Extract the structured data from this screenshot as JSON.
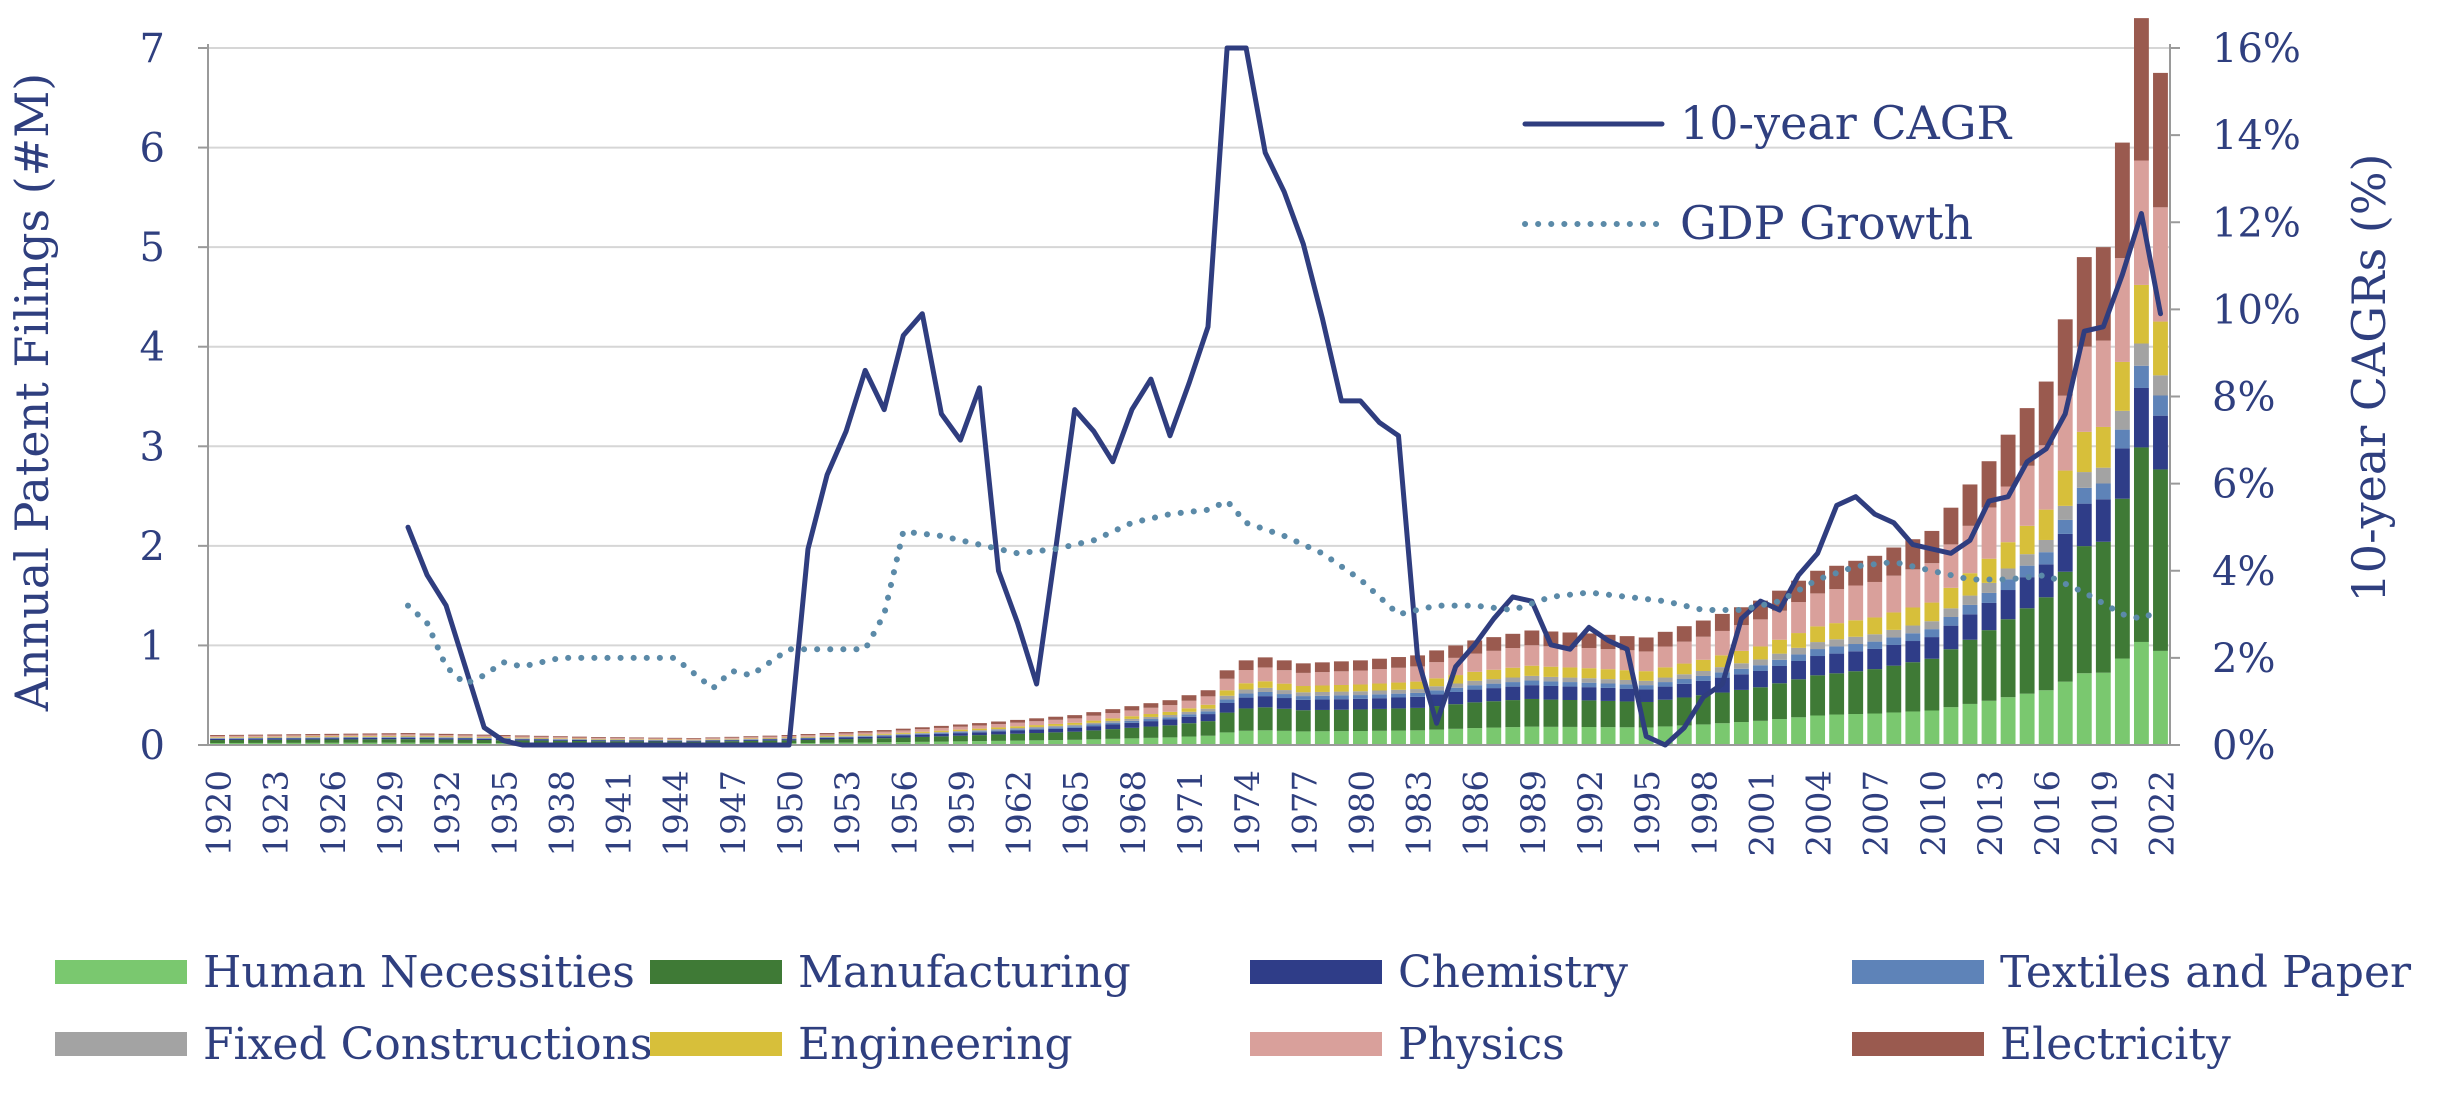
{
  "chart_data": {
    "type": "bar",
    "subtype": "stacked bar + line (dual axis)",
    "ylabel_left": "Annual Patent Filings (#M)",
    "ylabel_right": "10-year CAGRs (%)",
    "ylim_left": [
      0,
      7
    ],
    "ylim_right": [
      0,
      16
    ],
    "left_ticks": [
      "0",
      "1",
      "2",
      "3",
      "4",
      "5",
      "6",
      "7"
    ],
    "right_ticks": [
      "0%",
      "2%",
      "4%",
      "6%",
      "8%",
      "10%",
      "12%",
      "14%",
      "16%"
    ],
    "x_start": 1920,
    "x_end": 2022,
    "x_tick_labels": [
      "1920",
      "1923",
      "1926",
      "1929",
      "1932",
      "1935",
      "1938",
      "1941",
      "1944",
      "1947",
      "1950",
      "1953",
      "1956",
      "1959",
      "1962",
      "1965",
      "1968",
      "1971",
      "1974",
      "1977",
      "1980",
      "1983",
      "1986",
      "1989",
      "1992",
      "1995",
      "1998",
      "2001",
      "2004",
      "2007",
      "2010",
      "2013",
      "2016",
      "2019",
      "2022"
    ],
    "grid": "horizontal",
    "legend_position": "bottom; lines top-right",
    "stack_series": [
      {
        "name": "Human Necessities",
        "color": "#7ac86f"
      },
      {
        "name": "Manufacturing",
        "color": "#3f7a36"
      },
      {
        "name": "Chemistry",
        "color": "#2f3d88"
      },
      {
        "name": "Textiles and Paper",
        "color": "#5e83b8"
      },
      {
        "name": "Fixed Constructions",
        "color": "#a3a3a3"
      },
      {
        "name": "Engineering",
        "color": "#d7bf3a"
      },
      {
        "name": "Physics",
        "color": "#d9a09b"
      },
      {
        "name": "Electricity",
        "color": "#9a5a4f"
      }
    ],
    "totals_key": [
      [
        1920,
        0.1
      ],
      [
        1930,
        0.12
      ],
      [
        1940,
        0.08
      ],
      [
        1945,
        0.07
      ],
      [
        1950,
        0.1
      ],
      [
        1955,
        0.15
      ],
      [
        1960,
        0.22
      ],
      [
        1965,
        0.3
      ],
      [
        1970,
        0.45
      ],
      [
        1972,
        0.55
      ],
      [
        1973,
        0.75
      ],
      [
        1974,
        0.85
      ],
      [
        1975,
        0.88
      ],
      [
        1977,
        0.82
      ],
      [
        1980,
        0.85
      ],
      [
        1983,
        0.9
      ],
      [
        1986,
        1.05
      ],
      [
        1989,
        1.15
      ],
      [
        1992,
        1.12
      ],
      [
        1995,
        1.08
      ],
      [
        1998,
        1.25
      ],
      [
        2001,
        1.45
      ],
      [
        2004,
        1.75
      ],
      [
        2007,
        1.9
      ],
      [
        2010,
        2.15
      ],
      [
        2013,
        2.85
      ],
      [
        2016,
        3.65
      ],
      [
        2018,
        4.9
      ],
      [
        2019,
        5.0
      ],
      [
        2020,
        6.05
      ],
      [
        2021,
        7.3
      ],
      [
        2022,
        6.75
      ]
    ],
    "composition_key": [
      [
        1920,
        [
          0.2,
          0.3,
          0.12,
          0.05,
          0.05,
          0.06,
          0.12,
          0.1
        ]
      ],
      [
        1970,
        [
          0.17,
          0.27,
          0.13,
          0.05,
          0.05,
          0.07,
          0.15,
          0.11
        ]
      ],
      [
        1990,
        [
          0.16,
          0.24,
          0.12,
          0.04,
          0.04,
          0.09,
          0.18,
          0.13
        ]
      ],
      [
        2005,
        [
          0.17,
          0.23,
          0.11,
          0.04,
          0.04,
          0.09,
          0.19,
          0.13
        ]
      ],
      [
        2022,
        [
          0.14,
          0.27,
          0.08,
          0.03,
          0.03,
          0.08,
          0.17,
          0.2
        ]
      ]
    ],
    "lines": [
      {
        "name": "10-year CAGR",
        "style": "solid",
        "color": "#2f3d7f",
        "points": [
          [
            1930,
            5.0
          ],
          [
            1931,
            3.9
          ],
          [
            1932,
            3.2
          ],
          [
            1933,
            1.8
          ],
          [
            1934,
            0.4
          ],
          [
            1935,
            0.1
          ],
          [
            1936,
            0.0
          ],
          [
            1950,
            0.0
          ],
          [
            1951,
            4.5
          ],
          [
            1952,
            6.2
          ],
          [
            1953,
            7.2
          ],
          [
            1954,
            8.6
          ],
          [
            1955,
            7.7
          ],
          [
            1956,
            9.4
          ],
          [
            1957,
            9.9
          ],
          [
            1958,
            7.6
          ],
          [
            1959,
            7.0
          ],
          [
            1960,
            8.2
          ],
          [
            1961,
            4.0
          ],
          [
            1962,
            2.8
          ],
          [
            1963,
            1.4
          ],
          [
            1964,
            4.5
          ],
          [
            1965,
            7.7
          ],
          [
            1966,
            7.2
          ],
          [
            1967,
            6.5
          ],
          [
            1968,
            7.7
          ],
          [
            1969,
            8.4
          ],
          [
            1970,
            7.1
          ],
          [
            1971,
            8.3
          ],
          [
            1972,
            9.6
          ],
          [
            1973,
            16.0
          ],
          [
            1974,
            16.0
          ],
          [
            1975,
            13.6
          ],
          [
            1976,
            12.7
          ],
          [
            1977,
            11.5
          ],
          [
            1978,
            9.8
          ],
          [
            1979,
            7.9
          ],
          [
            1980,
            7.9
          ],
          [
            1981,
            7.4
          ],
          [
            1982,
            7.1
          ],
          [
            1983,
            2.0
          ],
          [
            1984,
            0.5
          ],
          [
            1985,
            1.8
          ],
          [
            1986,
            2.3
          ],
          [
            1987,
            2.9
          ],
          [
            1988,
            3.4
          ],
          [
            1989,
            3.3
          ],
          [
            1990,
            2.3
          ],
          [
            1991,
            2.2
          ],
          [
            1992,
            2.7
          ],
          [
            1993,
            2.4
          ],
          [
            1994,
            2.2
          ],
          [
            1995,
            0.2
          ],
          [
            1996,
            0.0
          ],
          [
            1997,
            0.4
          ],
          [
            1998,
            1.1
          ],
          [
            1999,
            1.4
          ],
          [
            2000,
            2.9
          ],
          [
            2001,
            3.3
          ],
          [
            2002,
            3.1
          ],
          [
            2003,
            3.9
          ],
          [
            2004,
            4.4
          ],
          [
            2005,
            5.5
          ],
          [
            2006,
            5.7
          ],
          [
            2007,
            5.3
          ],
          [
            2008,
            5.1
          ],
          [
            2009,
            4.6
          ],
          [
            2010,
            4.5
          ],
          [
            2011,
            4.4
          ],
          [
            2012,
            4.7
          ],
          [
            2013,
            5.6
          ],
          [
            2014,
            5.7
          ],
          [
            2015,
            6.5
          ],
          [
            2016,
            6.8
          ],
          [
            2017,
            7.6
          ],
          [
            2018,
            9.5
          ],
          [
            2019,
            9.6
          ],
          [
            2020,
            10.8
          ],
          [
            2021,
            12.2
          ],
          [
            2022,
            9.9
          ]
        ]
      },
      {
        "name": "GDP Growth",
        "style": "dotted",
        "color": "#5b8aa8",
        "points": [
          [
            1930,
            3.2
          ],
          [
            1931,
            2.8
          ],
          [
            1932,
            1.8
          ],
          [
            1933,
            1.4
          ],
          [
            1934,
            1.6
          ],
          [
            1935,
            1.9
          ],
          [
            1936,
            1.8
          ],
          [
            1938,
            2.0
          ],
          [
            1940,
            2.0
          ],
          [
            1943,
            2.0
          ],
          [
            1944,
            2.0
          ],
          [
            1946,
            1.3
          ],
          [
            1947,
            1.7
          ],
          [
            1948,
            1.6
          ],
          [
            1950,
            2.2
          ],
          [
            1952,
            2.2
          ],
          [
            1954,
            2.2
          ],
          [
            1955,
            3.0
          ],
          [
            1956,
            4.9
          ],
          [
            1958,
            4.8
          ],
          [
            1960,
            4.6
          ],
          [
            1962,
            4.4
          ],
          [
            1964,
            4.5
          ],
          [
            1966,
            4.7
          ],
          [
            1968,
            5.1
          ],
          [
            1970,
            5.3
          ],
          [
            1972,
            5.4
          ],
          [
            1973,
            5.6
          ],
          [
            1974,
            5.1
          ],
          [
            1976,
            4.8
          ],
          [
            1978,
            4.4
          ],
          [
            1980,
            3.8
          ],
          [
            1982,
            3.0
          ],
          [
            1984,
            3.2
          ],
          [
            1986,
            3.2
          ],
          [
            1988,
            3.1
          ],
          [
            1990,
            3.4
          ],
          [
            1992,
            3.5
          ],
          [
            1994,
            3.4
          ],
          [
            1996,
            3.3
          ],
          [
            1998,
            3.1
          ],
          [
            2000,
            3.1
          ],
          [
            2002,
            3.3
          ],
          [
            2004,
            3.8
          ],
          [
            2006,
            4.1
          ],
          [
            2008,
            4.2
          ],
          [
            2010,
            4.0
          ],
          [
            2012,
            3.8
          ],
          [
            2014,
            3.8
          ],
          [
            2016,
            3.9
          ],
          [
            2018,
            3.5
          ],
          [
            2020,
            3.0
          ],
          [
            2021,
            2.9
          ],
          [
            2022,
            3.1
          ]
        ]
      }
    ]
  }
}
